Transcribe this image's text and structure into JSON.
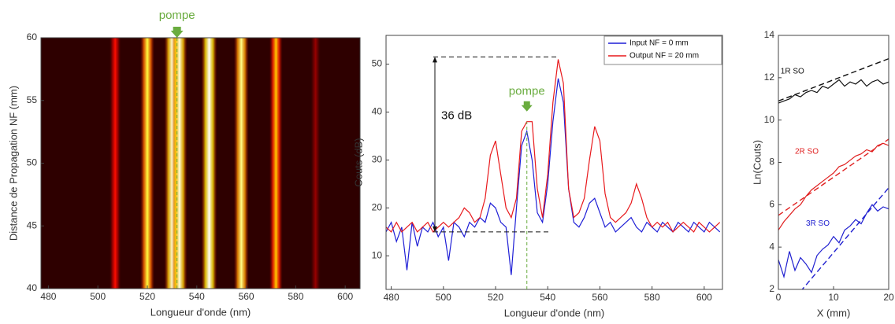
{
  "chart_data": [
    {
      "type": "heatmap",
      "xlabel": "Longueur d'onde (nm)",
      "ylabel": "Distance de Propagation NF (mm)",
      "x": [
        507,
        520,
        530,
        533,
        545,
        558,
        572,
        588
      ],
      "values": [
        0.35,
        0.75,
        0.95,
        0.95,
        1.0,
        0.85,
        0.6,
        0.2
      ],
      "xlim": [
        477,
        606
      ],
      "ylim": [
        40,
        60
      ],
      "xticks": [
        480,
        500,
        520,
        540,
        560,
        580,
        600
      ],
      "yticks": [
        40,
        45,
        50,
        55,
        60
      ],
      "annotation": {
        "text": "pompe",
        "x": 532
      }
    },
    {
      "type": "line",
      "xlabel": "Longueur d'onde (nm)",
      "ylabel": "Couts (dB)",
      "x": [
        478,
        480,
        482,
        484,
        486,
        488,
        490,
        492,
        494,
        496,
        498,
        500,
        502,
        504,
        506,
        508,
        510,
        512,
        514,
        516,
        518,
        520,
        522,
        524,
        526,
        528,
        530,
        532,
        534,
        536,
        538,
        540,
        542,
        544,
        546,
        548,
        550,
        552,
        554,
        556,
        558,
        560,
        562,
        564,
        566,
        568,
        570,
        572,
        574,
        576,
        578,
        580,
        582,
        584,
        586,
        588,
        590,
        592,
        594,
        596,
        598,
        600,
        602,
        604,
        606
      ],
      "series": [
        {
          "name": "Input NF = 0 mm",
          "color": "#1f1fd6",
          "values": [
            15,
            17,
            13,
            16,
            7,
            17,
            12,
            16,
            15,
            17,
            14,
            16,
            9,
            17,
            16,
            14,
            17,
            16,
            18,
            17,
            21,
            20,
            17,
            16,
            6,
            20,
            33,
            36,
            30,
            19,
            17,
            25,
            38,
            47,
            42,
            24,
            17,
            16,
            18,
            21,
            22,
            19,
            16,
            17,
            15,
            16,
            17,
            18,
            16,
            15,
            17,
            16,
            15,
            17,
            16,
            15,
            17,
            16,
            15,
            17,
            16,
            15,
            17,
            16,
            15
          ]
        },
        {
          "name": "Output NF = 20 mm",
          "color": "#e8191c",
          "values": [
            16,
            15,
            17,
            15,
            16,
            17,
            15,
            16,
            17,
            15,
            16,
            17,
            16,
            17,
            18,
            20,
            19,
            17,
            18,
            22,
            31,
            34,
            27,
            20,
            18,
            22,
            36,
            38,
            38,
            24,
            18,
            27,
            42,
            51,
            46,
            24,
            18,
            19,
            22,
            30,
            37,
            34,
            23,
            18,
            17,
            18,
            19,
            21,
            25,
            22,
            18,
            16,
            17,
            16,
            17,
            15,
            16,
            17,
            16,
            15,
            17,
            16,
            15,
            16,
            17
          ]
        }
      ],
      "xlim": [
        478,
        607
      ],
      "ylim": [
        3,
        56
      ],
      "xticks": [
        480,
        500,
        520,
        540,
        560,
        580,
        600
      ],
      "yticks": [
        10,
        20,
        30,
        40,
        50
      ],
      "legend": "upper right",
      "hlines": [
        51.5,
        15
      ],
      "vline": 532,
      "annotations": [
        {
          "text": "pompe",
          "x": 532
        },
        {
          "text": "36 dB"
        }
      ]
    },
    {
      "type": "line",
      "xlabel": "X (mm)",
      "ylabel": "Ln(Couts)",
      "xlim": [
        0,
        20
      ],
      "ylim": [
        2,
        14
      ],
      "xticks": [
        0,
        10,
        20
      ],
      "yticks": [
        2,
        4,
        6,
        8,
        10,
        12,
        14
      ],
      "series": [
        {
          "name": "1R SO",
          "color": "#111111",
          "x": [
            0,
            1,
            2,
            3,
            4,
            5,
            6,
            7,
            8,
            9,
            10,
            11,
            12,
            13,
            14,
            15,
            16,
            17,
            18,
            19,
            20
          ],
          "values": [
            10.8,
            10.9,
            11.0,
            11.2,
            11.1,
            11.3,
            11.4,
            11.3,
            11.6,
            11.5,
            11.7,
            11.9,
            11.6,
            11.8,
            11.7,
            11.9,
            11.6,
            11.8,
            11.9,
            11.7,
            11.8
          ]
        },
        {
          "color": "#111111",
          "dashed": true,
          "x": [
            0,
            20
          ],
          "values": [
            10.9,
            12.9
          ]
        },
        {
          "name": "2R SO",
          "color": "#e02020",
          "x": [
            0,
            1,
            2,
            3,
            4,
            5,
            6,
            7,
            8,
            9,
            10,
            11,
            12,
            13,
            14,
            15,
            16,
            17,
            18,
            19,
            20
          ],
          "values": [
            4.8,
            5.2,
            5.5,
            5.8,
            6.0,
            6.4,
            6.7,
            6.9,
            7.1,
            7.3,
            7.5,
            7.8,
            7.9,
            8.1,
            8.3,
            8.4,
            8.6,
            8.5,
            8.8,
            8.9,
            8.8
          ]
        },
        {
          "color": "#e02020",
          "dashed": true,
          "x": [
            0,
            20
          ],
          "values": [
            5.5,
            9.1
          ]
        },
        {
          "name": "3R SO",
          "color": "#2020d0",
          "x": [
            0,
            1,
            2,
            3,
            4,
            5,
            6,
            7,
            8,
            9,
            10,
            11,
            12,
            13,
            14,
            15,
            16,
            17,
            18,
            19,
            20
          ],
          "values": [
            3.4,
            2.6,
            3.8,
            2.9,
            3.5,
            3.2,
            2.8,
            3.6,
            3.9,
            4.1,
            4.5,
            4.2,
            4.8,
            5.0,
            5.3,
            5.1,
            5.6,
            6.0,
            5.7,
            5.9,
            5.8
          ]
        },
        {
          "color": "#2020d0",
          "dashed": true,
          "x": [
            4,
            20
          ],
          "values": [
            1.9,
            6.8
          ]
        }
      ]
    }
  ]
}
